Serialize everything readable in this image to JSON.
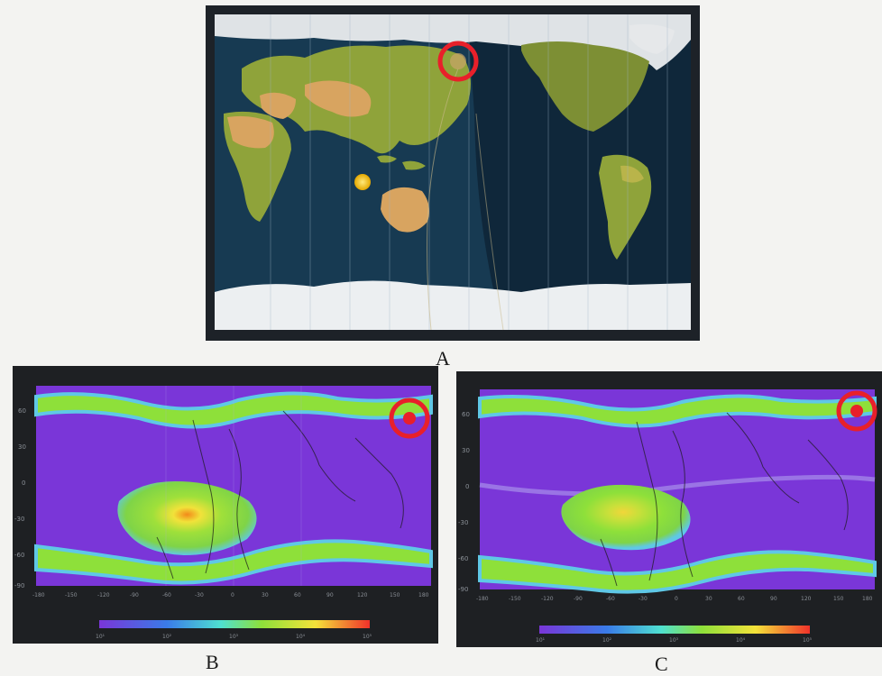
{
  "figure": {
    "panel_a": {
      "caption": "A",
      "marker": "red-ring-marker"
    },
    "panel_b": {
      "caption": "B",
      "y_ticks": [
        "60",
        "30",
        "0",
        "-30",
        "-60",
        "-90"
      ],
      "x_ticks": [
        "-180",
        "-150",
        "-120",
        "-90",
        "-60",
        "-30",
        "0",
        "30",
        "60",
        "90",
        "120",
        "150",
        "180"
      ],
      "colorbar_ticks": [
        "10¹",
        "10²",
        "10³",
        "10⁴",
        "10⁵"
      ],
      "marker": "red-ring-marker"
    },
    "panel_c": {
      "caption": "C",
      "y_ticks": [
        "60",
        "30",
        "0",
        "-30",
        "-60",
        "-90"
      ],
      "x_ticks": [
        "-180",
        "-150",
        "-120",
        "-90",
        "-60",
        "-30",
        "0",
        "30",
        "60",
        "90",
        "120",
        "150",
        "180"
      ],
      "colorbar_ticks": [
        "10¹",
        "10²",
        "10³",
        "10⁴",
        "10⁵"
      ],
      "marker": "red-ring-marker"
    },
    "colors": {
      "ocean": "#173a52",
      "ice": "#e9ecef",
      "land_green": "#8fa33a",
      "land_tan": "#d8a460",
      "flux_background": "#7a36d8",
      "flux_belt": "#8ee03a",
      "marker_red": "#e8202a"
    }
  }
}
